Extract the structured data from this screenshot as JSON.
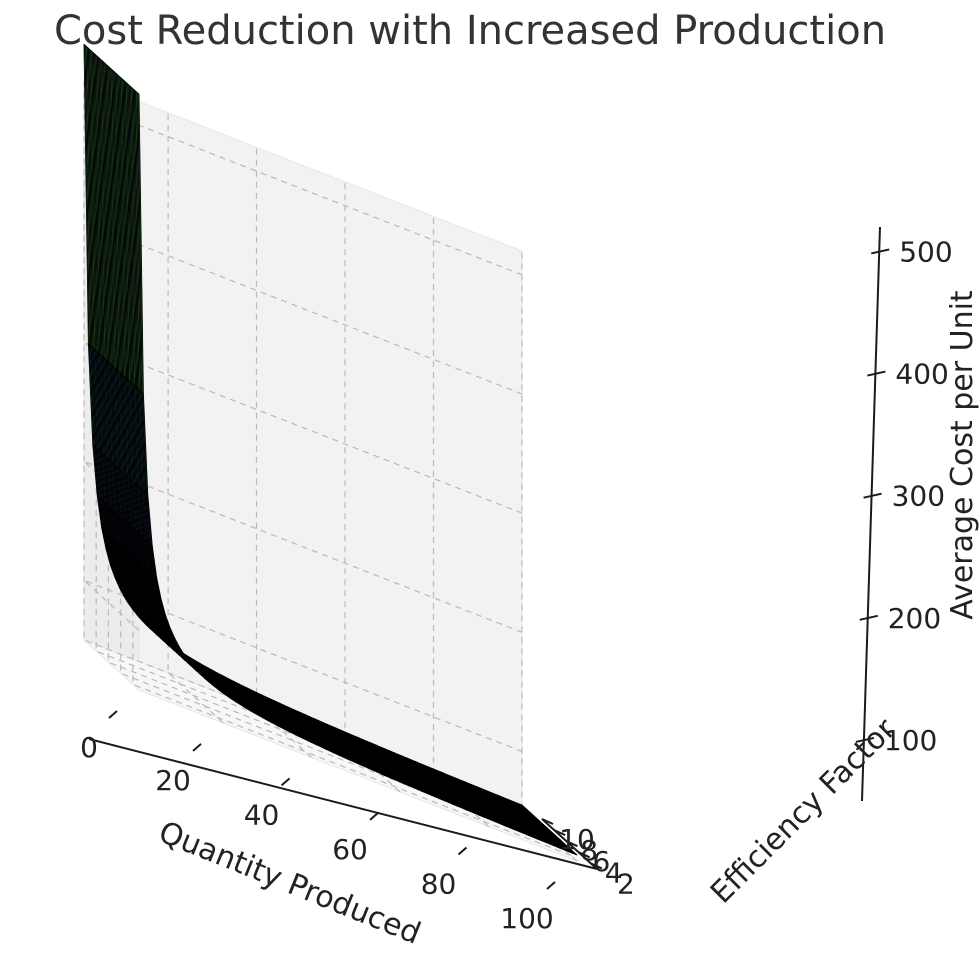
{
  "chart_data": {
    "type": "surface",
    "title": "Cost Reduction with Increased Production",
    "xlabel": "Quantity Produced",
    "ylabel": "Efficiency Factor",
    "zlabel": "Average Cost per Unit",
    "xlim": [
      1,
      100
    ],
    "ylim": [
      1,
      10
    ],
    "zlim": [
      50,
      520
    ],
    "x_ticks": [
      0,
      20,
      40,
      60,
      80,
      100
    ],
    "y_ticks": [
      2,
      4,
      6,
      8,
      10
    ],
    "z_ticks": [
      100,
      200,
      300,
      400,
      500
    ],
    "x_tick_labels": [
      "0",
      "20",
      "40",
      "60",
      "80",
      "100"
    ],
    "y_tick_labels": [
      "2",
      "4",
      "6",
      "8",
      "10"
    ],
    "z_tick_labels": [
      "100",
      "200",
      "300",
      "400",
      "500"
    ],
    "model": "average_cost = 500 / quantity + 50",
    "x_samples": 100,
    "y_samples": 50,
    "colormap": "viridis",
    "colors": {
      "colormap_stops": [
        "#440154",
        "#3b528b",
        "#21918c",
        "#5ec962",
        "#fde725"
      ],
      "edge": "#000000"
    },
    "grid": true
  }
}
